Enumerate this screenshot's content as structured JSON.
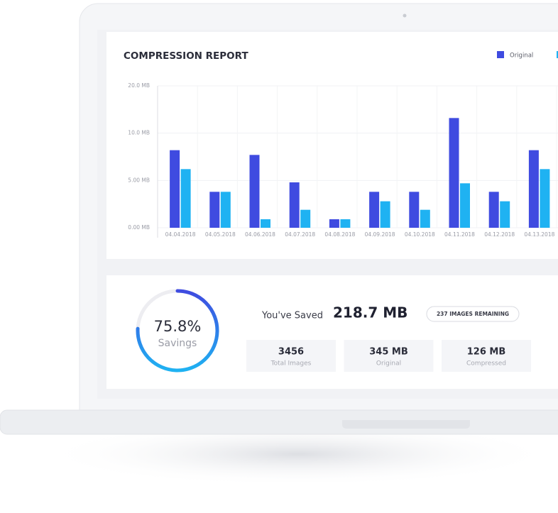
{
  "chart_data": {
    "type": "bar",
    "title": "COMPRESSION REPORT",
    "categories": [
      "04.04.2018",
      "04.05.2018",
      "04.06.2018",
      "04.07.2018",
      "04.08.2018",
      "04.09.2018",
      "04.10.2018",
      "04.11.2018",
      "04.12.2018",
      "04.13.2018"
    ],
    "series": [
      {
        "name": "Original",
        "color": "#3f4be0",
        "values": [
          8.2,
          3.8,
          7.7,
          4.8,
          0.9,
          3.8,
          3.8,
          13.2,
          3.8,
          8.2
        ]
      },
      {
        "color": "#1fb2f2",
        "values": [
          6.2,
          3.8,
          0.9,
          1.9,
          0.9,
          2.8,
          1.9,
          4.7,
          2.8,
          6.2
        ]
      }
    ],
    "ylim": [
      0,
      20
    ],
    "yticks": [
      {
        "value": 0,
        "label": "0.00 MB"
      },
      {
        "value": 5,
        "label": "5.00 MB"
      },
      {
        "value": 10,
        "label": "10.0 MB"
      },
      {
        "value": 20,
        "label": "20.0 MB"
      }
    ],
    "grid": true,
    "legend": "top-right"
  },
  "summary": {
    "savings": {
      "value": 75.8,
      "label": "75.8%",
      "caption": "Savings"
    },
    "saved_label": "You've Saved",
    "saved_amount": "218.7 MB",
    "remaining_button": "237 IMAGES REMAINING",
    "stats": [
      {
        "value": "3456",
        "label": "Total Images"
      },
      {
        "value": "345 MB",
        "label": "Original"
      },
      {
        "value": "126 MB",
        "label": "Compressed"
      }
    ]
  }
}
